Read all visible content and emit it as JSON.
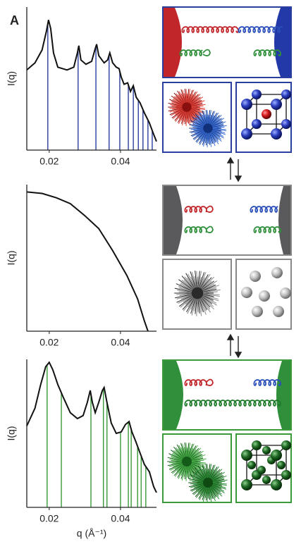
{
  "panel_label": "A",
  "chart_data": [
    {
      "type": "line",
      "ylabel": "I(q)",
      "color": "#111111",
      "x": [
        0.0137,
        0.016,
        0.018,
        0.0192,
        0.0198,
        0.0204,
        0.0212,
        0.0224,
        0.025,
        0.0269,
        0.0279,
        0.0283,
        0.0289,
        0.0303,
        0.0319,
        0.0329,
        0.0333,
        0.0339,
        0.0354,
        0.0364,
        0.037,
        0.0378,
        0.0388,
        0.0396,
        0.0402,
        0.041,
        0.042,
        0.0428,
        0.0436,
        0.0444,
        0.0455,
        0.0467,
        0.0481,
        0.0493,
        0.0501
      ],
      "values": [
        0.56,
        0.61,
        0.7,
        0.83,
        0.91,
        0.85,
        0.68,
        0.58,
        0.56,
        0.58,
        0.68,
        0.73,
        0.63,
        0.6,
        0.62,
        0.71,
        0.74,
        0.66,
        0.61,
        0.63,
        0.68,
        0.61,
        0.58,
        0.57,
        0.51,
        0.46,
        0.47,
        0.41,
        0.45,
        0.37,
        0.33,
        0.26,
        0.19,
        0.11,
        0.06
      ],
      "peak_lines": {
        "color": "#2b3f9e",
        "x": [
          0.0196,
          0.0281,
          0.0331,
          0.0368,
          0.0398,
          0.0422,
          0.0436,
          0.045,
          0.0463,
          0.0477,
          0.0489
        ]
      },
      "xlim": [
        0.0137,
        0.0501
      ],
      "xticks": [
        0.02,
        0.04
      ],
      "ylim": [
        0,
        1
      ]
    },
    {
      "type": "line",
      "ylabel": "I(q)",
      "color": "#111111",
      "x": [
        0.0137,
        0.018,
        0.022,
        0.0259,
        0.0299,
        0.0339,
        0.0378,
        0.0418,
        0.0448,
        0.0467,
        0.0477
      ],
      "values": [
        0.95,
        0.94,
        0.91,
        0.87,
        0.79,
        0.7,
        0.55,
        0.38,
        0.22,
        0.07,
        0
      ],
      "xlim": [
        0.0137,
        0.0501
      ],
      "xticks": [
        0.02,
        0.04
      ],
      "ylim": [
        0,
        1
      ]
    },
    {
      "type": "line",
      "ylabel": "I(q)",
      "xlabel": "q (Å⁻¹)",
      "color": "#111111",
      "x": [
        0.0137,
        0.016,
        0.0176,
        0.019,
        0.02,
        0.021,
        0.0224,
        0.024,
        0.0259,
        0.0279,
        0.0295,
        0.0307,
        0.0315,
        0.0321,
        0.0329,
        0.0339,
        0.0349,
        0.0354,
        0.0362,
        0.0374,
        0.0388,
        0.0402,
        0.0414,
        0.0424,
        0.0432,
        0.0442,
        0.0453,
        0.0467,
        0.0481,
        0.0493,
        0.0501
      ],
      "values": [
        0.55,
        0.67,
        0.83,
        0.95,
        0.98,
        0.93,
        0.83,
        0.74,
        0.64,
        0.6,
        0.62,
        0.71,
        0.79,
        0.71,
        0.64,
        0.71,
        0.79,
        0.81,
        0.71,
        0.57,
        0.5,
        0.51,
        0.56,
        0.58,
        0.51,
        0.45,
        0.38,
        0.29,
        0.24,
        0.14,
        0.1
      ],
      "peak_lines": {
        "color": "#3a9a3a",
        "x": [
          0.0194,
          0.0234,
          0.0317,
          0.0352,
          0.0362,
          0.04,
          0.0422,
          0.043,
          0.0448,
          0.0458,
          0.0471
        ]
      },
      "xlim": [
        0.0137,
        0.0501
      ],
      "xticks": [
        0.02,
        0.04
      ],
      "ylim": [
        0,
        1
      ]
    }
  ]
}
